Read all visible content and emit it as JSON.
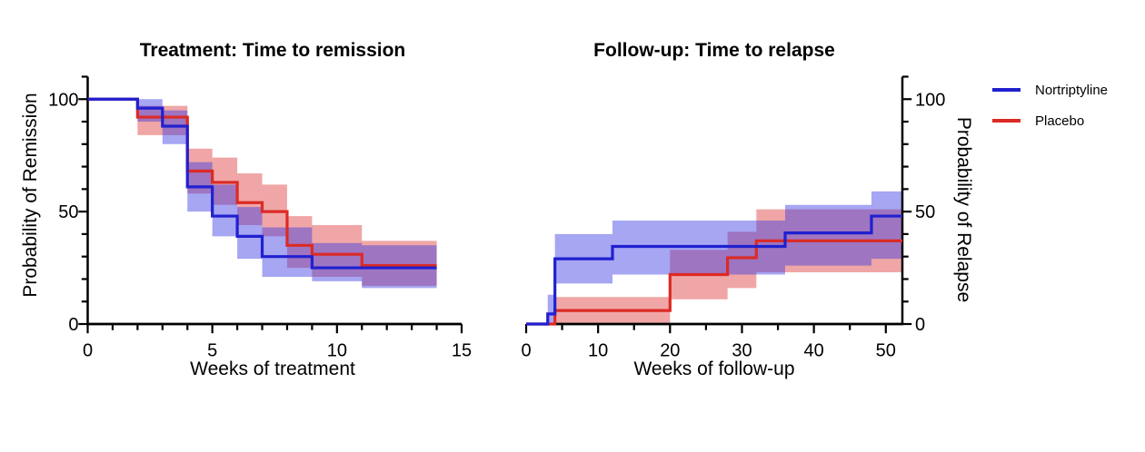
{
  "page": {
    "background": "#ffffff"
  },
  "colors": {
    "axis": "#000000",
    "nortriptyline_line": "#2020D0",
    "placebo_line": "#DC2A25",
    "nortriptyline_band": "rgba(57,57,226,0.45)",
    "placebo_band": "rgba(222,57,57,0.45)"
  },
  "legend": {
    "items": [
      {
        "label": "Nortriptyline",
        "color": "#2020D0"
      },
      {
        "label": "Placebo",
        "color": "#DC2A25"
      }
    ]
  },
  "chart_data": [
    {
      "type": "line",
      "subtype": "kaplan-meier-step-with-ci-bands",
      "title": "Treatment: Time to remission",
      "xlabel": "Weeks of treatment",
      "ylabel": "Probability of Remission",
      "xlim": [
        0,
        15
      ],
      "ylim": [
        0,
        110
      ],
      "x_major_ticks": [
        0,
        5,
        10,
        15
      ],
      "x_minor_step": 1,
      "y_major_ticks": [
        0,
        50,
        100
      ],
      "y_minor_step": 10,
      "y_axis_side": "left",
      "grid": false,
      "x_end": 14,
      "series": [
        {
          "name": "Nortriptyline",
          "color": "#2020D0",
          "band_color": "rgba(57,57,226,0.45)",
          "steps": [
            [
              0,
              100
            ],
            [
              2,
              96
            ],
            [
              3,
              88
            ],
            [
              4,
              61
            ],
            [
              5,
              48
            ],
            [
              6,
              39
            ],
            [
              7,
              30
            ],
            [
              9,
              25
            ]
          ],
          "band": [
            [
              2,
              3,
              100,
              90
            ],
            [
              3,
              4,
              95,
              80
            ],
            [
              4,
              5,
              72,
              50
            ],
            [
              5,
              6,
              62,
              39
            ],
            [
              6,
              7,
              52,
              29
            ],
            [
              7,
              9,
              43,
              21
            ],
            [
              9,
              11,
              36,
              19
            ],
            [
              11,
              14,
              35,
              16
            ]
          ]
        },
        {
          "name": "Placebo",
          "color": "#DC2A25",
          "band_color": "rgba(222,57,57,0.45)",
          "steps": [
            [
              0,
              100
            ],
            [
              2,
              92
            ],
            [
              4,
              68
            ],
            [
              5,
              63
            ],
            [
              6,
              54
            ],
            [
              7,
              50
            ],
            [
              8,
              35
            ],
            [
              9,
              31
            ],
            [
              11,
              26
            ]
          ],
          "band": [
            [
              2,
              4,
              97,
              84
            ],
            [
              4,
              5,
              78,
              58
            ],
            [
              5,
              6,
              74,
              53
            ],
            [
              6,
              7,
              67,
              44
            ],
            [
              7,
              8,
              62,
              39
            ],
            [
              8,
              9,
              48,
              25
            ],
            [
              9,
              11,
              44,
              21
            ],
            [
              11,
              14,
              37,
              17
            ]
          ]
        }
      ]
    },
    {
      "type": "line",
      "subtype": "kaplan-meier-step-with-ci-bands",
      "title": "Follow-up: Time to relapse",
      "xlabel": "Weeks of follow-up",
      "ylabel": "Probability of Relapse",
      "xlim": [
        0,
        52.3
      ],
      "ylim": [
        0,
        110
      ],
      "x_major_ticks": [
        0,
        10,
        20,
        30,
        40,
        50
      ],
      "x_minor_step": 5,
      "y_major_ticks": [
        0,
        50,
        100
      ],
      "y_minor_step": 10,
      "y_axis_side": "right",
      "grid": false,
      "x_end": 52.3,
      "series": [
        {
          "name": "Nortriptyline",
          "color": "#2020D0",
          "band_color": "rgba(57,57,226,0.45)",
          "steps": [
            [
              0,
              0
            ],
            [
              3,
              4.5
            ],
            [
              4,
              29
            ],
            [
              12,
              34.5
            ],
            [
              36,
              40.5
            ],
            [
              48,
              48
            ]
          ],
          "band": [
            [
              3,
              4,
              13,
              0
            ],
            [
              4,
              12,
              40,
              18
            ],
            [
              12,
              36,
              46,
              22
            ],
            [
              36,
              48,
              53,
              26
            ],
            [
              48,
              52.3,
              59,
              29
            ]
          ]
        },
        {
          "name": "Placebo",
          "color": "#DC2A25",
          "band_color": "rgba(222,57,57,0.45)",
          "steps": [
            [
              0,
              0
            ],
            [
              4,
              6
            ],
            [
              20,
              22
            ],
            [
              28,
              29.5
            ],
            [
              32,
              37
            ]
          ],
          "band": [
            [
              4,
              20,
              12,
              0
            ],
            [
              20,
              28,
              33,
              11
            ],
            [
              28,
              32,
              41,
              16
            ],
            [
              32,
              52.3,
              51,
              23
            ]
          ]
        }
      ]
    }
  ]
}
